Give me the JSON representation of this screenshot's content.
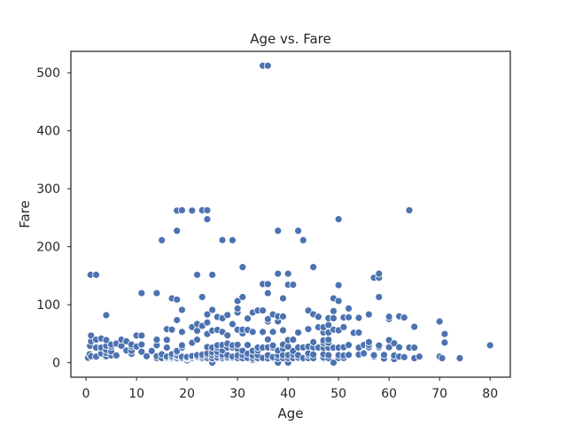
{
  "chart_data": {
    "type": "scatter",
    "title": "Age vs. Fare",
    "xlabel": "Age",
    "ylabel": "Fare",
    "xlim": [
      -3,
      84
    ],
    "ylim": [
      -25,
      537
    ],
    "xticks": [
      0,
      10,
      20,
      30,
      40,
      50,
      60,
      70,
      80
    ],
    "yticks": [
      0,
      100,
      200,
      300,
      400,
      500
    ],
    "grid": false,
    "marker_color": "#4c72b0",
    "points": [
      [
        0.4,
        8.5
      ],
      [
        0.7,
        14.5
      ],
      [
        0.8,
        29
      ],
      [
        0.9,
        151.6
      ],
      [
        1,
        11.1
      ],
      [
        1,
        37
      ],
      [
        1,
        46.9
      ],
      [
        2,
        10.5
      ],
      [
        2,
        26
      ],
      [
        2,
        39.7
      ],
      [
        2,
        151.6
      ],
      [
        3,
        15.9
      ],
      [
        3,
        26
      ],
      [
        3,
        41.6
      ],
      [
        4,
        11.1
      ],
      [
        4,
        16.7
      ],
      [
        4,
        22
      ],
      [
        4,
        29.1
      ],
      [
        4,
        39
      ],
      [
        4,
        81.9
      ],
      [
        5,
        12.5
      ],
      [
        5,
        19.3
      ],
      [
        5,
        27.8
      ],
      [
        5,
        31.4
      ],
      [
        6,
        12.5
      ],
      [
        6,
        33
      ],
      [
        7,
        29
      ],
      [
        7,
        39.7
      ],
      [
        8,
        21
      ],
      [
        8,
        36.8
      ],
      [
        9,
        15.2
      ],
      [
        9,
        20.5
      ],
      [
        9,
        27.9
      ],
      [
        9,
        31.4
      ],
      [
        10,
        27.9
      ],
      [
        10,
        46.9
      ],
      [
        11,
        18.8
      ],
      [
        11,
        31.3
      ],
      [
        11,
        46.9
      ],
      [
        11,
        120
      ],
      [
        12,
        11.2
      ],
      [
        13,
        19.5
      ],
      [
        13,
        20.2
      ],
      [
        14,
        7.9
      ],
      [
        14,
        11.2
      ],
      [
        14,
        30.1
      ],
      [
        14,
        39.7
      ],
      [
        14,
        120
      ],
      [
        15,
        7.2
      ],
      [
        15,
        8
      ],
      [
        15,
        14.5
      ],
      [
        15,
        211.3
      ],
      [
        16,
        7.8
      ],
      [
        16,
        9.5
      ],
      [
        16,
        10.5
      ],
      [
        16,
        26
      ],
      [
        16,
        39.4
      ],
      [
        16,
        57.9
      ],
      [
        17,
        7.1
      ],
      [
        17,
        8.7
      ],
      [
        17,
        10.5
      ],
      [
        17,
        14.5
      ],
      [
        17,
        57
      ],
      [
        17,
        110.9
      ],
      [
        18,
        6.5
      ],
      [
        18,
        7.8
      ],
      [
        18,
        8.1
      ],
      [
        18,
        11.5
      ],
      [
        18,
        13
      ],
      [
        18,
        17.8
      ],
      [
        18,
        20.2
      ],
      [
        18,
        73.5
      ],
      [
        18,
        108.9
      ],
      [
        18,
        227.5
      ],
      [
        18,
        262.4
      ],
      [
        19,
        6.8
      ],
      [
        19,
        7.9
      ],
      [
        19,
        10.2
      ],
      [
        19,
        26
      ],
      [
        19,
        30
      ],
      [
        19,
        53.1
      ],
      [
        19,
        91.1
      ],
      [
        19,
        263
      ],
      [
        20,
        4
      ],
      [
        20,
        7.2
      ],
      [
        20,
        7.9
      ],
      [
        20,
        9.2
      ],
      [
        20,
        9.8
      ],
      [
        21,
        7.7
      ],
      [
        21,
        8
      ],
      [
        21,
        10.5
      ],
      [
        21,
        11.5
      ],
      [
        21,
        34.4
      ],
      [
        21,
        61.4
      ],
      [
        21,
        262.4
      ],
      [
        22,
        7.2
      ],
      [
        22,
        7.8
      ],
      [
        22,
        8.1
      ],
      [
        22,
        9
      ],
      [
        22,
        10.5
      ],
      [
        22,
        13
      ],
      [
        22,
        39.7
      ],
      [
        22,
        55
      ],
      [
        22,
        66.6
      ],
      [
        22,
        151.6
      ],
      [
        23,
        7.9
      ],
      [
        23,
        10.5
      ],
      [
        23,
        13.8
      ],
      [
        23,
        63.4
      ],
      [
        23,
        113.3
      ],
      [
        23,
        263
      ],
      [
        24,
        7.5
      ],
      [
        24,
        8.1
      ],
      [
        24,
        13
      ],
      [
        24,
        16.1
      ],
      [
        24,
        27
      ],
      [
        24,
        49.5
      ],
      [
        24,
        69.3
      ],
      [
        24,
        83.2
      ],
      [
        24,
        247.5
      ],
      [
        24,
        263
      ],
      [
        25,
        0
      ],
      [
        25,
        7.1
      ],
      [
        25,
        7.7
      ],
      [
        25,
        13
      ],
      [
        25,
        17.8
      ],
      [
        25,
        26
      ],
      [
        25,
        55.4
      ],
      [
        25,
        91.1
      ],
      [
        25,
        151.6
      ],
      [
        26,
        7.8
      ],
      [
        26,
        8.7
      ],
      [
        26,
        14.5
      ],
      [
        26,
        18.8
      ],
      [
        26,
        26
      ],
      [
        26,
        30
      ],
      [
        26,
        56.5
      ],
      [
        26,
        78.9
      ],
      [
        27,
        6.9
      ],
      [
        27,
        7.8
      ],
      [
        27,
        10.5
      ],
      [
        27,
        13.9
      ],
      [
        27,
        21
      ],
      [
        27,
        30.5
      ],
      [
        27,
        53.1
      ],
      [
        27,
        76.7
      ],
      [
        27,
        211.5
      ],
      [
        28,
        7.2
      ],
      [
        28,
        7.9
      ],
      [
        28,
        9.5
      ],
      [
        28,
        13
      ],
      [
        28,
        26
      ],
      [
        28,
        33
      ],
      [
        28,
        47.1
      ],
      [
        28,
        82.2
      ],
      [
        29,
        7.8
      ],
      [
        29,
        9.5
      ],
      [
        29,
        10.5
      ],
      [
        29,
        26
      ],
      [
        29,
        30
      ],
      [
        29,
        66.6
      ],
      [
        29,
        211.3
      ],
      [
        30,
        7.2
      ],
      [
        30,
        8.1
      ],
      [
        30,
        12.5
      ],
      [
        30,
        24.2
      ],
      [
        30,
        31
      ],
      [
        30,
        56.9
      ],
      [
        30,
        86.5
      ],
      [
        30,
        93.5
      ],
      [
        30,
        106.4
      ],
      [
        31,
        7.8
      ],
      [
        31,
        13
      ],
      [
        31,
        20.5
      ],
      [
        31,
        50.5
      ],
      [
        31,
        57
      ],
      [
        31,
        113.3
      ],
      [
        31,
        164.9
      ],
      [
        32,
        7.9
      ],
      [
        32,
        8.1
      ],
      [
        32,
        15.5
      ],
      [
        32,
        30.5
      ],
      [
        32,
        56.5
      ],
      [
        32,
        76.3
      ],
      [
        33,
        5
      ],
      [
        33,
        7.9
      ],
      [
        33,
        12.3
      ],
      [
        33,
        20.5
      ],
      [
        33,
        53.1
      ],
      [
        33,
        86.5
      ],
      [
        34,
        6.5
      ],
      [
        34,
        8
      ],
      [
        34,
        13
      ],
      [
        34,
        21
      ],
      [
        34,
        26
      ],
      [
        34,
        90
      ],
      [
        35,
        7.1
      ],
      [
        35,
        8.1
      ],
      [
        35,
        26
      ],
      [
        35,
        53.1
      ],
      [
        35,
        90
      ],
      [
        35,
        135.6
      ],
      [
        35,
        512.3
      ],
      [
        36,
        7.5
      ],
      [
        36,
        12.9
      ],
      [
        36,
        26.4
      ],
      [
        36,
        40.1
      ],
      [
        36,
        71
      ],
      [
        36,
        75.2
      ],
      [
        36,
        120
      ],
      [
        36,
        135.6
      ],
      [
        36,
        512.3
      ],
      [
        37,
        7.9
      ],
      [
        37,
        9.6
      ],
      [
        37,
        26
      ],
      [
        37,
        29.7
      ],
      [
        37,
        53.1
      ],
      [
        37,
        83.2
      ],
      [
        38,
        0
      ],
      [
        38,
        7.9
      ],
      [
        38,
        13
      ],
      [
        38,
        21
      ],
      [
        38,
        71.3
      ],
      [
        38,
        80
      ],
      [
        38,
        153.5
      ],
      [
        38,
        227.5
      ],
      [
        39,
        7.9
      ],
      [
        39,
        13
      ],
      [
        39,
        24.2
      ],
      [
        39,
        31.3
      ],
      [
        39,
        55.9
      ],
      [
        39,
        79.7
      ],
      [
        39,
        110.9
      ],
      [
        40,
        0
      ],
      [
        40,
        7.9
      ],
      [
        40,
        13
      ],
      [
        40,
        27.7
      ],
      [
        40,
        39
      ],
      [
        40,
        134.5
      ],
      [
        40,
        153.5
      ],
      [
        41,
        7.1
      ],
      [
        41,
        7.9
      ],
      [
        41,
        14.1
      ],
      [
        41,
        20.2
      ],
      [
        41,
        39.7
      ],
      [
        41,
        134.5
      ],
      [
        42,
        7.6
      ],
      [
        42,
        8.7
      ],
      [
        42,
        13
      ],
      [
        42,
        26.3
      ],
      [
        42,
        52
      ],
      [
        42,
        227.5
      ],
      [
        43,
        6.5
      ],
      [
        43,
        8
      ],
      [
        43,
        26.3
      ],
      [
        43,
        211.3
      ],
      [
        44,
        7.9
      ],
      [
        44,
        13
      ],
      [
        44,
        16.1
      ],
      [
        44,
        27.7
      ],
      [
        44,
        57.9
      ],
      [
        44,
        90
      ],
      [
        45,
        7.8
      ],
      [
        45,
        14.1
      ],
      [
        45,
        26.3
      ],
      [
        45,
        35.5
      ],
      [
        45,
        83.5
      ],
      [
        45,
        164.9
      ],
      [
        46,
        26
      ],
      [
        46,
        61.2
      ],
      [
        46,
        79.2
      ],
      [
        47,
        7.2
      ],
      [
        47,
        9
      ],
      [
        47,
        14.5
      ],
      [
        47,
        25.6
      ],
      [
        47,
        34
      ],
      [
        47,
        38.5
      ],
      [
        47,
        52
      ],
      [
        47,
        61.2
      ],
      [
        48,
        7.9
      ],
      [
        48,
        13
      ],
      [
        48,
        25.9
      ],
      [
        48,
        34.4
      ],
      [
        48,
        39.6
      ],
      [
        48,
        52
      ],
      [
        48,
        65
      ],
      [
        48,
        76.7
      ],
      [
        49,
        0
      ],
      [
        49,
        25.9
      ],
      [
        49,
        56.9
      ],
      [
        49,
        76.7
      ],
      [
        49,
        89.1
      ],
      [
        49,
        110.9
      ],
      [
        50,
        8
      ],
      [
        50,
        13
      ],
      [
        50,
        26
      ],
      [
        50,
        55.9
      ],
      [
        50,
        106.4
      ],
      [
        50,
        133.7
      ],
      [
        50,
        247.5
      ],
      [
        51,
        7.1
      ],
      [
        51,
        8.1
      ],
      [
        51,
        12.5
      ],
      [
        51,
        26.6
      ],
      [
        51,
        61.4
      ],
      [
        51,
        77.9
      ],
      [
        52,
        13.5
      ],
      [
        52,
        30.5
      ],
      [
        52,
        78.3
      ],
      [
        52,
        93.5
      ],
      [
        53,
        51.5
      ],
      [
        54,
        14
      ],
      [
        54,
        26
      ],
      [
        54,
        51.9
      ],
      [
        54,
        77.3
      ],
      [
        55,
        16
      ],
      [
        55,
        30.5
      ],
      [
        56,
        26.6
      ],
      [
        56,
        30.7
      ],
      [
        56,
        35.5
      ],
      [
        56,
        83.2
      ],
      [
        57,
        10.5
      ],
      [
        57,
        13
      ],
      [
        57,
        146.5
      ],
      [
        58,
        26.6
      ],
      [
        58,
        29.7
      ],
      [
        58,
        113.3
      ],
      [
        58,
        146.5
      ],
      [
        58,
        153.5
      ],
      [
        59,
        7.2
      ],
      [
        59,
        13.5
      ],
      [
        60,
        26.6
      ],
      [
        60,
        39
      ],
      [
        60,
        75.3
      ],
      [
        60,
        79.2
      ],
      [
        61,
        6.2
      ],
      [
        61,
        12.4
      ],
      [
        61,
        33.5
      ],
      [
        62,
        10.5
      ],
      [
        62,
        26.6
      ],
      [
        62,
        80
      ],
      [
        63,
        9.6
      ],
      [
        63,
        77.9
      ],
      [
        64,
        26
      ],
      [
        64,
        263
      ],
      [
        65,
        7.8
      ],
      [
        65,
        26
      ],
      [
        65,
        61.9
      ],
      [
        66,
        10.5
      ],
      [
        70,
        10.5
      ],
      [
        70,
        71
      ],
      [
        70.5,
        7.8
      ],
      [
        71,
        34.7
      ],
      [
        71,
        49.5
      ],
      [
        74,
        7.8
      ],
      [
        80,
        30
      ]
    ]
  }
}
